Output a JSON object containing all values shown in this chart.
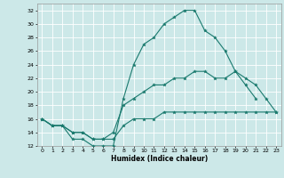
{
  "title": "",
  "xlabel": "Humidex (Indice chaleur)",
  "bg_color": "#cce8e8",
  "grid_color": "#ffffff",
  "line_color": "#1a7a6e",
  "xlim": [
    -0.5,
    23.5
  ],
  "ylim": [
    12,
    33
  ],
  "yticks": [
    12,
    14,
    16,
    18,
    20,
    22,
    24,
    26,
    28,
    30,
    32
  ],
  "xticks": [
    0,
    1,
    2,
    3,
    4,
    5,
    6,
    7,
    8,
    9,
    10,
    11,
    12,
    13,
    14,
    15,
    16,
    17,
    18,
    19,
    20,
    21,
    22,
    23
  ],
  "series": [
    {
      "x": [
        0,
        1,
        2,
        3,
        4,
        5,
        6,
        7,
        8,
        9,
        10,
        11,
        12,
        13,
        14,
        15,
        16,
        17,
        18,
        19,
        20,
        21
      ],
      "y": [
        16,
        15,
        15,
        13,
        13,
        12,
        12,
        12,
        19,
        24,
        27,
        28,
        30,
        31,
        32,
        32,
        29,
        28,
        26,
        23,
        21,
        19
      ]
    },
    {
      "x": [
        0,
        1,
        2,
        3,
        4,
        5,
        6,
        7,
        8,
        9,
        10,
        11,
        12,
        13,
        14,
        15,
        16,
        17,
        18,
        19,
        20,
        21,
        22,
        23
      ],
      "y": [
        16,
        15,
        15,
        14,
        14,
        13,
        13,
        14,
        18,
        19,
        20,
        21,
        21,
        22,
        22,
        23,
        23,
        22,
        22,
        23,
        22,
        21,
        19,
        17
      ]
    },
    {
      "x": [
        0,
        1,
        2,
        3,
        4,
        5,
        6,
        7,
        8,
        9,
        10,
        11,
        12,
        13,
        14,
        15,
        16,
        17,
        18,
        19,
        20,
        21,
        22,
        23
      ],
      "y": [
        16,
        15,
        15,
        14,
        14,
        13,
        13,
        13,
        15,
        16,
        16,
        16,
        17,
        17,
        17,
        17,
        17,
        17,
        17,
        17,
        17,
        17,
        17,
        17
      ]
    }
  ]
}
